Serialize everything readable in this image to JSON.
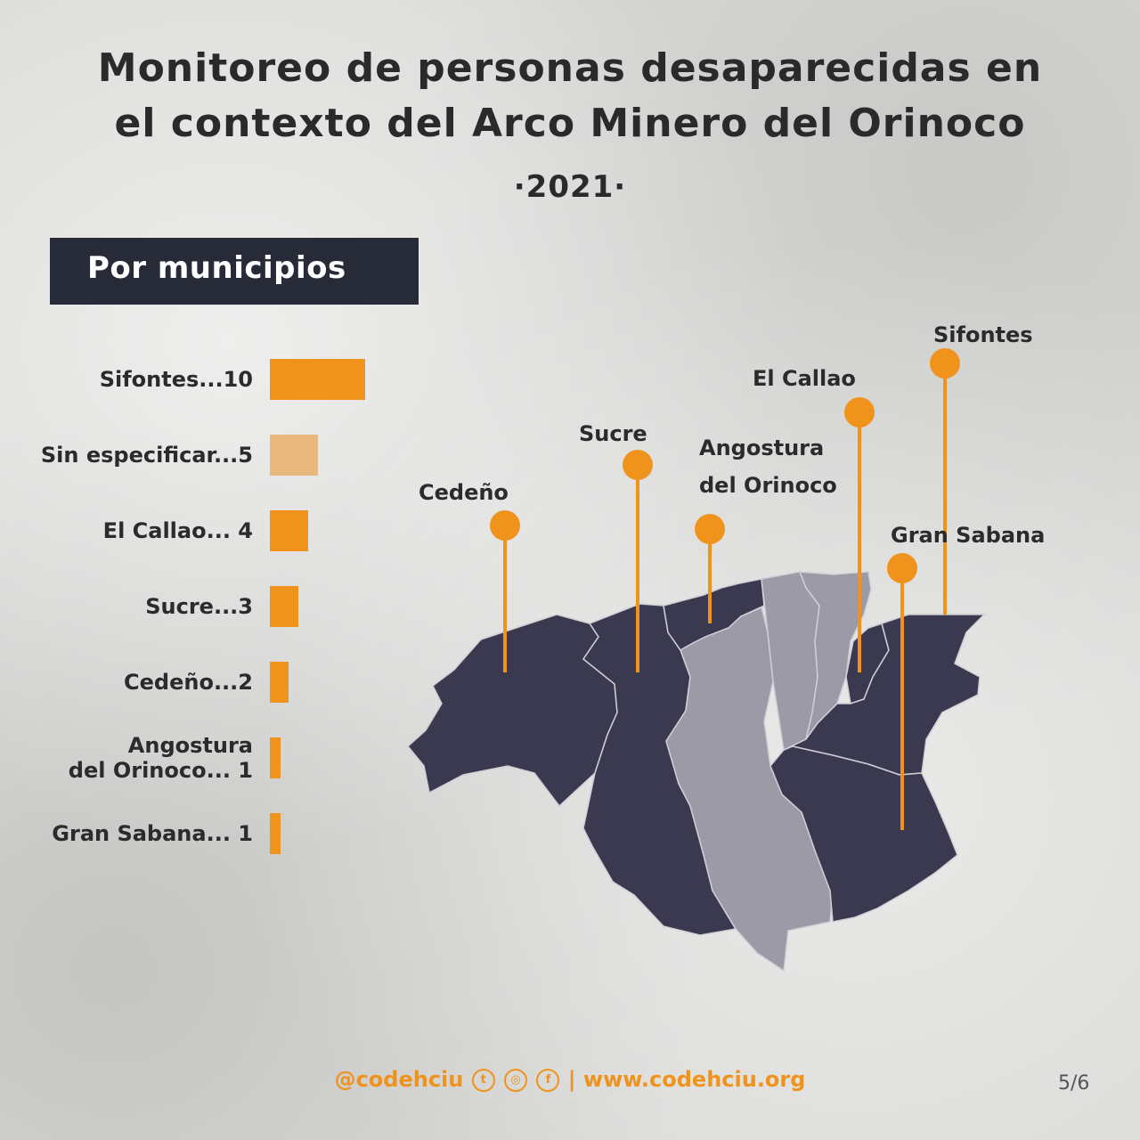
{
  "title_line1": "Monitoreo de personas desaparecidas en",
  "title_line2": "el contexto del Arco Minero del Orinoco",
  "subtitle": "·2021·",
  "section_label": "Por municipios",
  "colors": {
    "bar": "#f0931d",
    "bar_unspecified": "#e9b87c",
    "map_dark": "#3a3950",
    "map_light": "#9b9aa6",
    "pin": "#f0931d"
  },
  "chart_data": {
    "type": "bar",
    "orientation": "horizontal",
    "categories": [
      "Sifontes",
      "Sin especificar",
      "El Callao",
      "Sucre",
      "Cedeño",
      "Angostura del Orinoco",
      "Gran Sabana"
    ],
    "values": [
      10,
      5,
      4,
      3,
      2,
      1,
      1
    ],
    "labels": [
      [
        "Sifontes...10"
      ],
      [
        "Sin especificar...5"
      ],
      [
        "El Callao... 4"
      ],
      [
        "Sucre...3"
      ],
      [
        "Cedeño...2"
      ],
      [
        "Angostura",
        "del Orinoco... 1"
      ],
      [
        "Gran Sabana... 1"
      ]
    ],
    "title": "Por municipios",
    "xlabel": "",
    "ylabel": ""
  },
  "map_pins": [
    {
      "label": [
        "Cedeño"
      ]
    },
    {
      "label": [
        "Sucre"
      ]
    },
    {
      "label": [
        "Angostura",
        "del Orinoco"
      ]
    },
    {
      "label": [
        "El Callao"
      ]
    },
    {
      "label": [
        "Gran Sabana"
      ]
    },
    {
      "label": [
        "Sifontes"
      ]
    }
  ],
  "footer": {
    "handle": "@codehciu",
    "icons": [
      "twitter-icon",
      "instagram-icon",
      "facebook-icon"
    ],
    "separator": "|",
    "website": "www.codehciu.org"
  },
  "page_number": "5/6"
}
